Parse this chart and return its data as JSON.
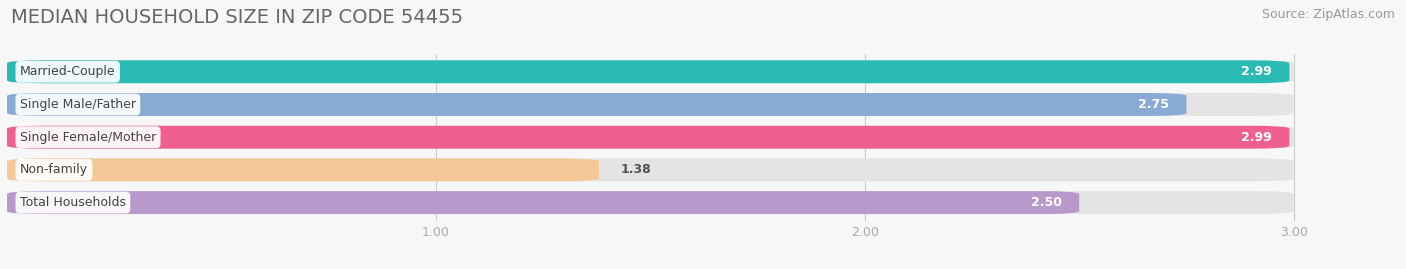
{
  "title": "MEDIAN HOUSEHOLD SIZE IN ZIP CODE 54455",
  "source": "Source: ZipAtlas.com",
  "categories": [
    "Married-Couple",
    "Single Male/Father",
    "Single Female/Mother",
    "Non-family",
    "Total Households"
  ],
  "values": [
    2.99,
    2.75,
    2.99,
    1.38,
    2.5
  ],
  "bar_colors": [
    "#29bbb3",
    "#8aaad6",
    "#f0608e",
    "#f5c898",
    "#b899cc"
  ],
  "xlim_min": 0.0,
  "xlim_max": 3.18,
  "xaxis_min": 0.0,
  "xaxis_max": 3.0,
  "xticks": [
    1.0,
    2.0,
    3.0
  ],
  "background_color": "#f7f7f7",
  "bar_bg_color": "#e4e4e4",
  "title_fontsize": 14,
  "label_fontsize": 9,
  "value_fontsize": 9,
  "source_fontsize": 9,
  "bar_height": 0.7,
  "bar_gap": 0.3
}
